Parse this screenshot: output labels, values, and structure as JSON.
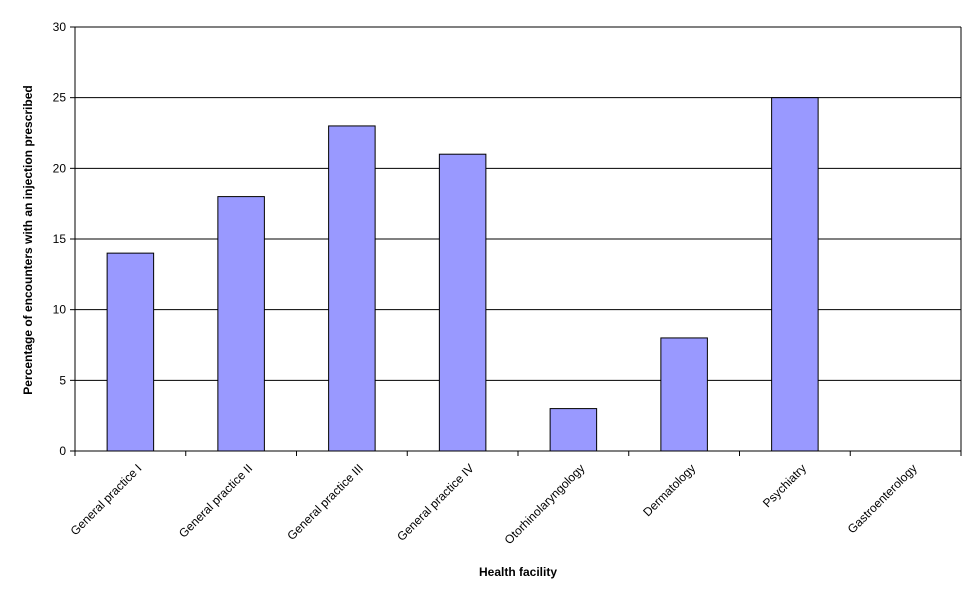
{
  "chart_data": {
    "type": "bar",
    "title": "",
    "xlabel": "Health facility",
    "ylabel": "Percentage of encounters with an injection prescribed",
    "categories": [
      "General practice I",
      "General practice II",
      "General practice III",
      "General practice IV",
      "Otorhinolaryngology",
      "Dermatology",
      "Psychiatry",
      "Gastroenterology"
    ],
    "values": [
      14,
      18,
      23,
      21,
      3,
      8,
      25,
      0
    ],
    "ylim": [
      0,
      30
    ],
    "yticks": [
      0,
      5,
      10,
      15,
      20,
      25,
      30
    ],
    "grid": true,
    "legend": "none",
    "bar_color": "#9999ff",
    "bar_outline": "#000000"
  }
}
